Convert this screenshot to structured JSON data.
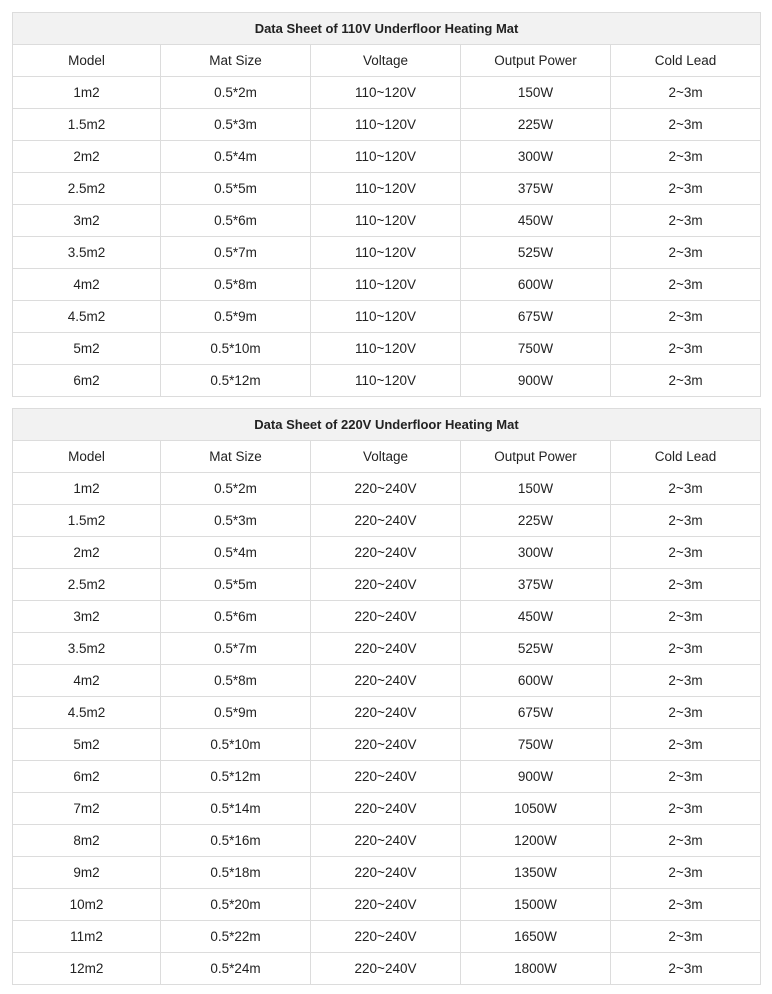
{
  "columns": [
    "Model",
    "Mat Size",
    "Voltage",
    "Output Power",
    "Cold Lead"
  ],
  "table1": {
    "title": "Data Sheet of 110V Underfloor Heating Mat",
    "rows": [
      [
        "1m2",
        "0.5*2m",
        "110~120V",
        "150W",
        "2~3m"
      ],
      [
        "1.5m2",
        "0.5*3m",
        "110~120V",
        "225W",
        "2~3m"
      ],
      [
        "2m2",
        "0.5*4m",
        "110~120V",
        "300W",
        "2~3m"
      ],
      [
        "2.5m2",
        "0.5*5m",
        "110~120V",
        "375W",
        "2~3m"
      ],
      [
        "3m2",
        "0.5*6m",
        "110~120V",
        "450W",
        "2~3m"
      ],
      [
        "3.5m2",
        "0.5*7m",
        "110~120V",
        "525W",
        "2~3m"
      ],
      [
        "4m2",
        "0.5*8m",
        "110~120V",
        "600W",
        "2~3m"
      ],
      [
        "4.5m2",
        "0.5*9m",
        "110~120V",
        "675W",
        "2~3m"
      ],
      [
        "5m2",
        "0.5*10m",
        "110~120V",
        "750W",
        "2~3m"
      ],
      [
        "6m2",
        "0.5*12m",
        "110~120V",
        "900W",
        "2~3m"
      ]
    ]
  },
  "table2": {
    "title": "Data Sheet of 220V Underfloor Heating Mat",
    "rows": [
      [
        "1m2",
        "0.5*2m",
        "220~240V",
        "150W",
        "2~3m"
      ],
      [
        "1.5m2",
        "0.5*3m",
        "220~240V",
        "225W",
        "2~3m"
      ],
      [
        "2m2",
        "0.5*4m",
        "220~240V",
        "300W",
        "2~3m"
      ],
      [
        "2.5m2",
        "0.5*5m",
        "220~240V",
        "375W",
        "2~3m"
      ],
      [
        "3m2",
        "0.5*6m",
        "220~240V",
        "450W",
        "2~3m"
      ],
      [
        "3.5m2",
        "0.5*7m",
        "220~240V",
        "525W",
        "2~3m"
      ],
      [
        "4m2",
        "0.5*8m",
        "220~240V",
        "600W",
        "2~3m"
      ],
      [
        "4.5m2",
        "0.5*9m",
        "220~240V",
        "675W",
        "2~3m"
      ],
      [
        "5m2",
        "0.5*10m",
        "220~240V",
        "750W",
        "2~3m"
      ],
      [
        "6m2",
        "0.5*12m",
        "220~240V",
        "900W",
        "2~3m"
      ],
      [
        "7m2",
        "0.5*14m",
        "220~240V",
        "1050W",
        "2~3m"
      ],
      [
        "8m2",
        "0.5*16m",
        "220~240V",
        "1200W",
        "2~3m"
      ],
      [
        "9m2",
        "0.5*18m",
        "220~240V",
        "1350W",
        "2~3m"
      ],
      [
        "10m2",
        "0.5*20m",
        "220~240V",
        "1500W",
        "2~3m"
      ],
      [
        "11m2",
        "0.5*22m",
        "220~240V",
        "1650W",
        "2~3m"
      ],
      [
        "12m2",
        "0.5*24m",
        "220~240V",
        "1800W",
        "2~3m"
      ]
    ]
  }
}
